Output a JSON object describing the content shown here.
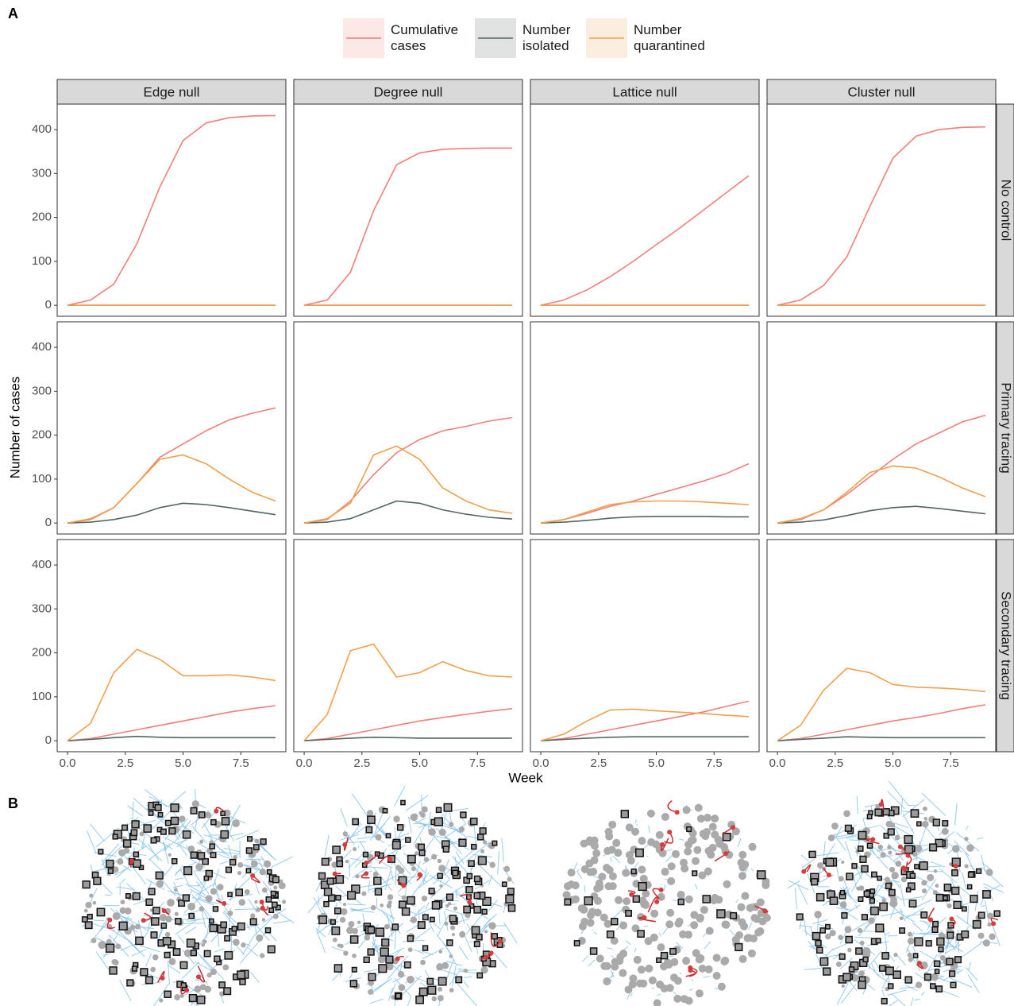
{
  "chart_data": {
    "type": "line",
    "panel_label": "A",
    "network_label": "B",
    "xlabel": "Week",
    "ylabel": "Number of cases",
    "x": [
      0,
      1,
      2,
      3,
      4,
      5,
      6,
      7,
      8,
      9
    ],
    "xlim": [
      -0.45,
      9.45
    ],
    "xticks": [
      {
        "value": 0,
        "label": "0.0"
      },
      {
        "value": 2.5,
        "label": "2.5"
      },
      {
        "value": 5,
        "label": "5.0"
      },
      {
        "value": 7.5,
        "label": "7.5"
      }
    ],
    "ylim": [
      -25,
      458
    ],
    "yticks": [
      0,
      100,
      200,
      300,
      400
    ],
    "series": [
      {
        "name": "Cumulative cases",
        "color": "#f07f78"
      },
      {
        "name": "Number isolated",
        "color": "#566563"
      },
      {
        "name": "Number quarantined",
        "color": "#f0a04b"
      }
    ],
    "columns": [
      "Edge null",
      "Degree null",
      "Lattice null",
      "Cluster null"
    ],
    "rows": [
      "No control",
      "Primary tracing",
      "Secondary tracing"
    ],
    "panels": [
      [
        [
          [
            0,
            12,
            48,
            140,
            270,
            375,
            415,
            427,
            431,
            432
          ],
          [
            0,
            0,
            0,
            0,
            0,
            0,
            0,
            0,
            0,
            0
          ],
          [
            0,
            0,
            0,
            0,
            0,
            0,
            0,
            0,
            0,
            0
          ]
        ],
        [
          [
            0,
            12,
            75,
            215,
            320,
            347,
            355,
            357,
            358,
            358
          ],
          [
            0,
            0,
            0,
            0,
            0,
            0,
            0,
            0,
            0,
            0
          ],
          [
            0,
            0,
            0,
            0,
            0,
            0,
            0,
            0,
            0,
            0
          ]
        ],
        [
          [
            0,
            12,
            35,
            65,
            100,
            138,
            175,
            215,
            255,
            295
          ],
          [
            0,
            0,
            0,
            0,
            0,
            0,
            0,
            0,
            0,
            0
          ],
          [
            0,
            0,
            0,
            0,
            0,
            0,
            0,
            0,
            0,
            0
          ]
        ],
        [
          [
            0,
            12,
            45,
            110,
            225,
            335,
            385,
            400,
            405,
            406
          ],
          [
            0,
            0,
            0,
            0,
            0,
            0,
            0,
            0,
            0,
            0
          ],
          [
            0,
            0,
            0,
            0,
            0,
            0,
            0,
            0,
            0,
            0
          ]
        ]
      ],
      [
        [
          [
            0,
            8,
            35,
            90,
            150,
            180,
            210,
            235,
            250,
            262
          ],
          [
            0,
            2,
            8,
            18,
            35,
            45,
            42,
            35,
            27,
            19
          ],
          [
            0,
            10,
            35,
            90,
            145,
            155,
            135,
            100,
            70,
            50
          ]
        ],
        [
          [
            0,
            8,
            50,
            110,
            160,
            190,
            210,
            220,
            232,
            240
          ],
          [
            0,
            2,
            10,
            30,
            50,
            45,
            30,
            20,
            13,
            9
          ],
          [
            0,
            10,
            45,
            155,
            175,
            145,
            80,
            50,
            30,
            22
          ]
        ],
        [
          [
            0,
            8,
            22,
            38,
            50,
            65,
            80,
            95,
            112,
            135
          ],
          [
            0,
            2,
            6,
            11,
            14,
            15,
            15,
            15,
            14,
            14
          ],
          [
            0,
            8,
            25,
            42,
            48,
            50,
            50,
            48,
            45,
            42
          ]
        ],
        [
          [
            0,
            8,
            30,
            65,
            105,
            145,
            180,
            205,
            230,
            245
          ],
          [
            0,
            2,
            7,
            17,
            28,
            35,
            38,
            33,
            27,
            21
          ],
          [
            0,
            10,
            30,
            70,
            115,
            130,
            125,
            105,
            80,
            60
          ]
        ]
      ],
      [
        [
          [
            0,
            5,
            15,
            25,
            35,
            45,
            55,
            65,
            73,
            80
          ],
          [
            0,
            3,
            7,
            10,
            8,
            7,
            7,
            7,
            7,
            7
          ],
          [
            0,
            40,
            155,
            208,
            185,
            148,
            148,
            150,
            145,
            137
          ]
        ],
        [
          [
            0,
            5,
            15,
            25,
            35,
            45,
            53,
            60,
            67,
            73
          ],
          [
            0,
            3,
            6,
            8,
            7,
            6,
            6,
            6,
            6,
            6
          ],
          [
            0,
            60,
            205,
            220,
            145,
            155,
            180,
            160,
            148,
            145
          ]
        ],
        [
          [
            0,
            5,
            15,
            25,
            35,
            45,
            55,
            65,
            78,
            90
          ],
          [
            0,
            3,
            6,
            8,
            9,
            9,
            9,
            9,
            9,
            9
          ],
          [
            0,
            15,
            45,
            70,
            72,
            68,
            65,
            62,
            58,
            55
          ]
        ],
        [
          [
            0,
            5,
            15,
            25,
            35,
            45,
            53,
            62,
            73,
            82
          ],
          [
            0,
            3,
            6,
            9,
            8,
            7,
            7,
            7,
            7,
            7
          ],
          [
            0,
            35,
            115,
            165,
            155,
            128,
            122,
            120,
            117,
            112
          ]
        ]
      ]
    ]
  }
}
